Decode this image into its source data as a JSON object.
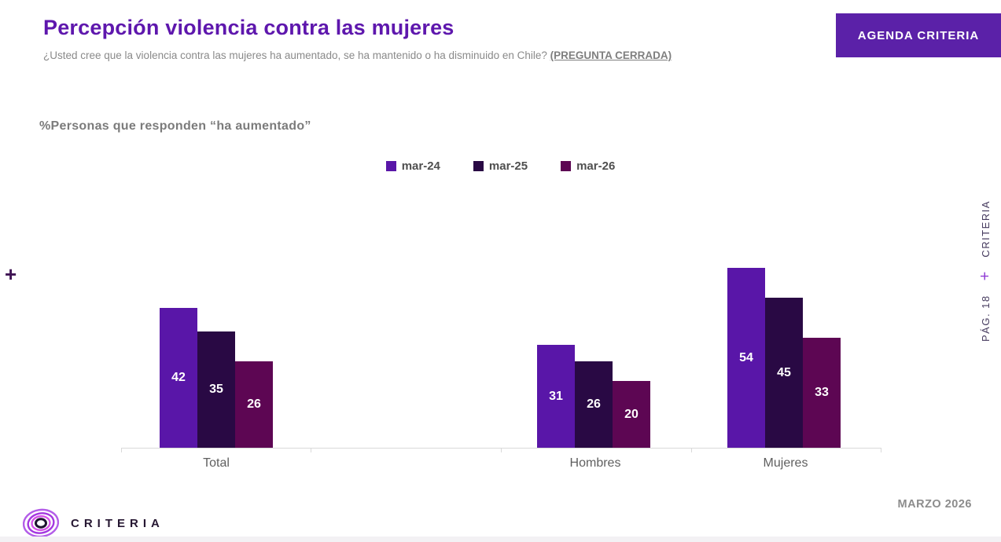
{
  "page": {
    "title": "Percepción violencia contra las mujeres",
    "subtitle": "¿Usted cree que la violencia contra las mujeres ha aumentado, se ha mantenido o ha disminuido en Chile? ",
    "subtitle_emphasis": "(PREGUNTA CERRADA)",
    "footer_date": "MARZO 2026",
    "brand": "CRITERIA"
  },
  "header": {
    "agenda_button_label": "AGENDA CRITERIA"
  },
  "left_rail": {
    "plus": "+"
  },
  "side_rail": {
    "brand": "CRITERIA",
    "plus": "+",
    "page_label": "PÁG. 18"
  },
  "colors": {
    "title_purple": "#5E17AD",
    "button_purple": "#5B21A8",
    "axis_line": "#D9D9D9",
    "value_label": "#FFFFFF"
  },
  "chart_data": {
    "type": "bar",
    "title": "%Personas que responden “ha aumentado”",
    "categories": [
      "Total",
      "Hombres",
      "Mujeres"
    ],
    "series": [
      {
        "name": "mar-24",
        "color": "#5916A8",
        "values": [
          42,
          31,
          54
        ]
      },
      {
        "name": "mar-25",
        "color": "#290944",
        "values": [
          35,
          26,
          45
        ]
      },
      {
        "name": "mar-26",
        "color": "#5D0653",
        "values": [
          26,
          20,
          33
        ]
      }
    ],
    "value_labels": true,
    "legend_position": "top-center",
    "xlabel": "",
    "ylabel": "",
    "ylim": [
      0,
      60
    ],
    "grid": false
  }
}
